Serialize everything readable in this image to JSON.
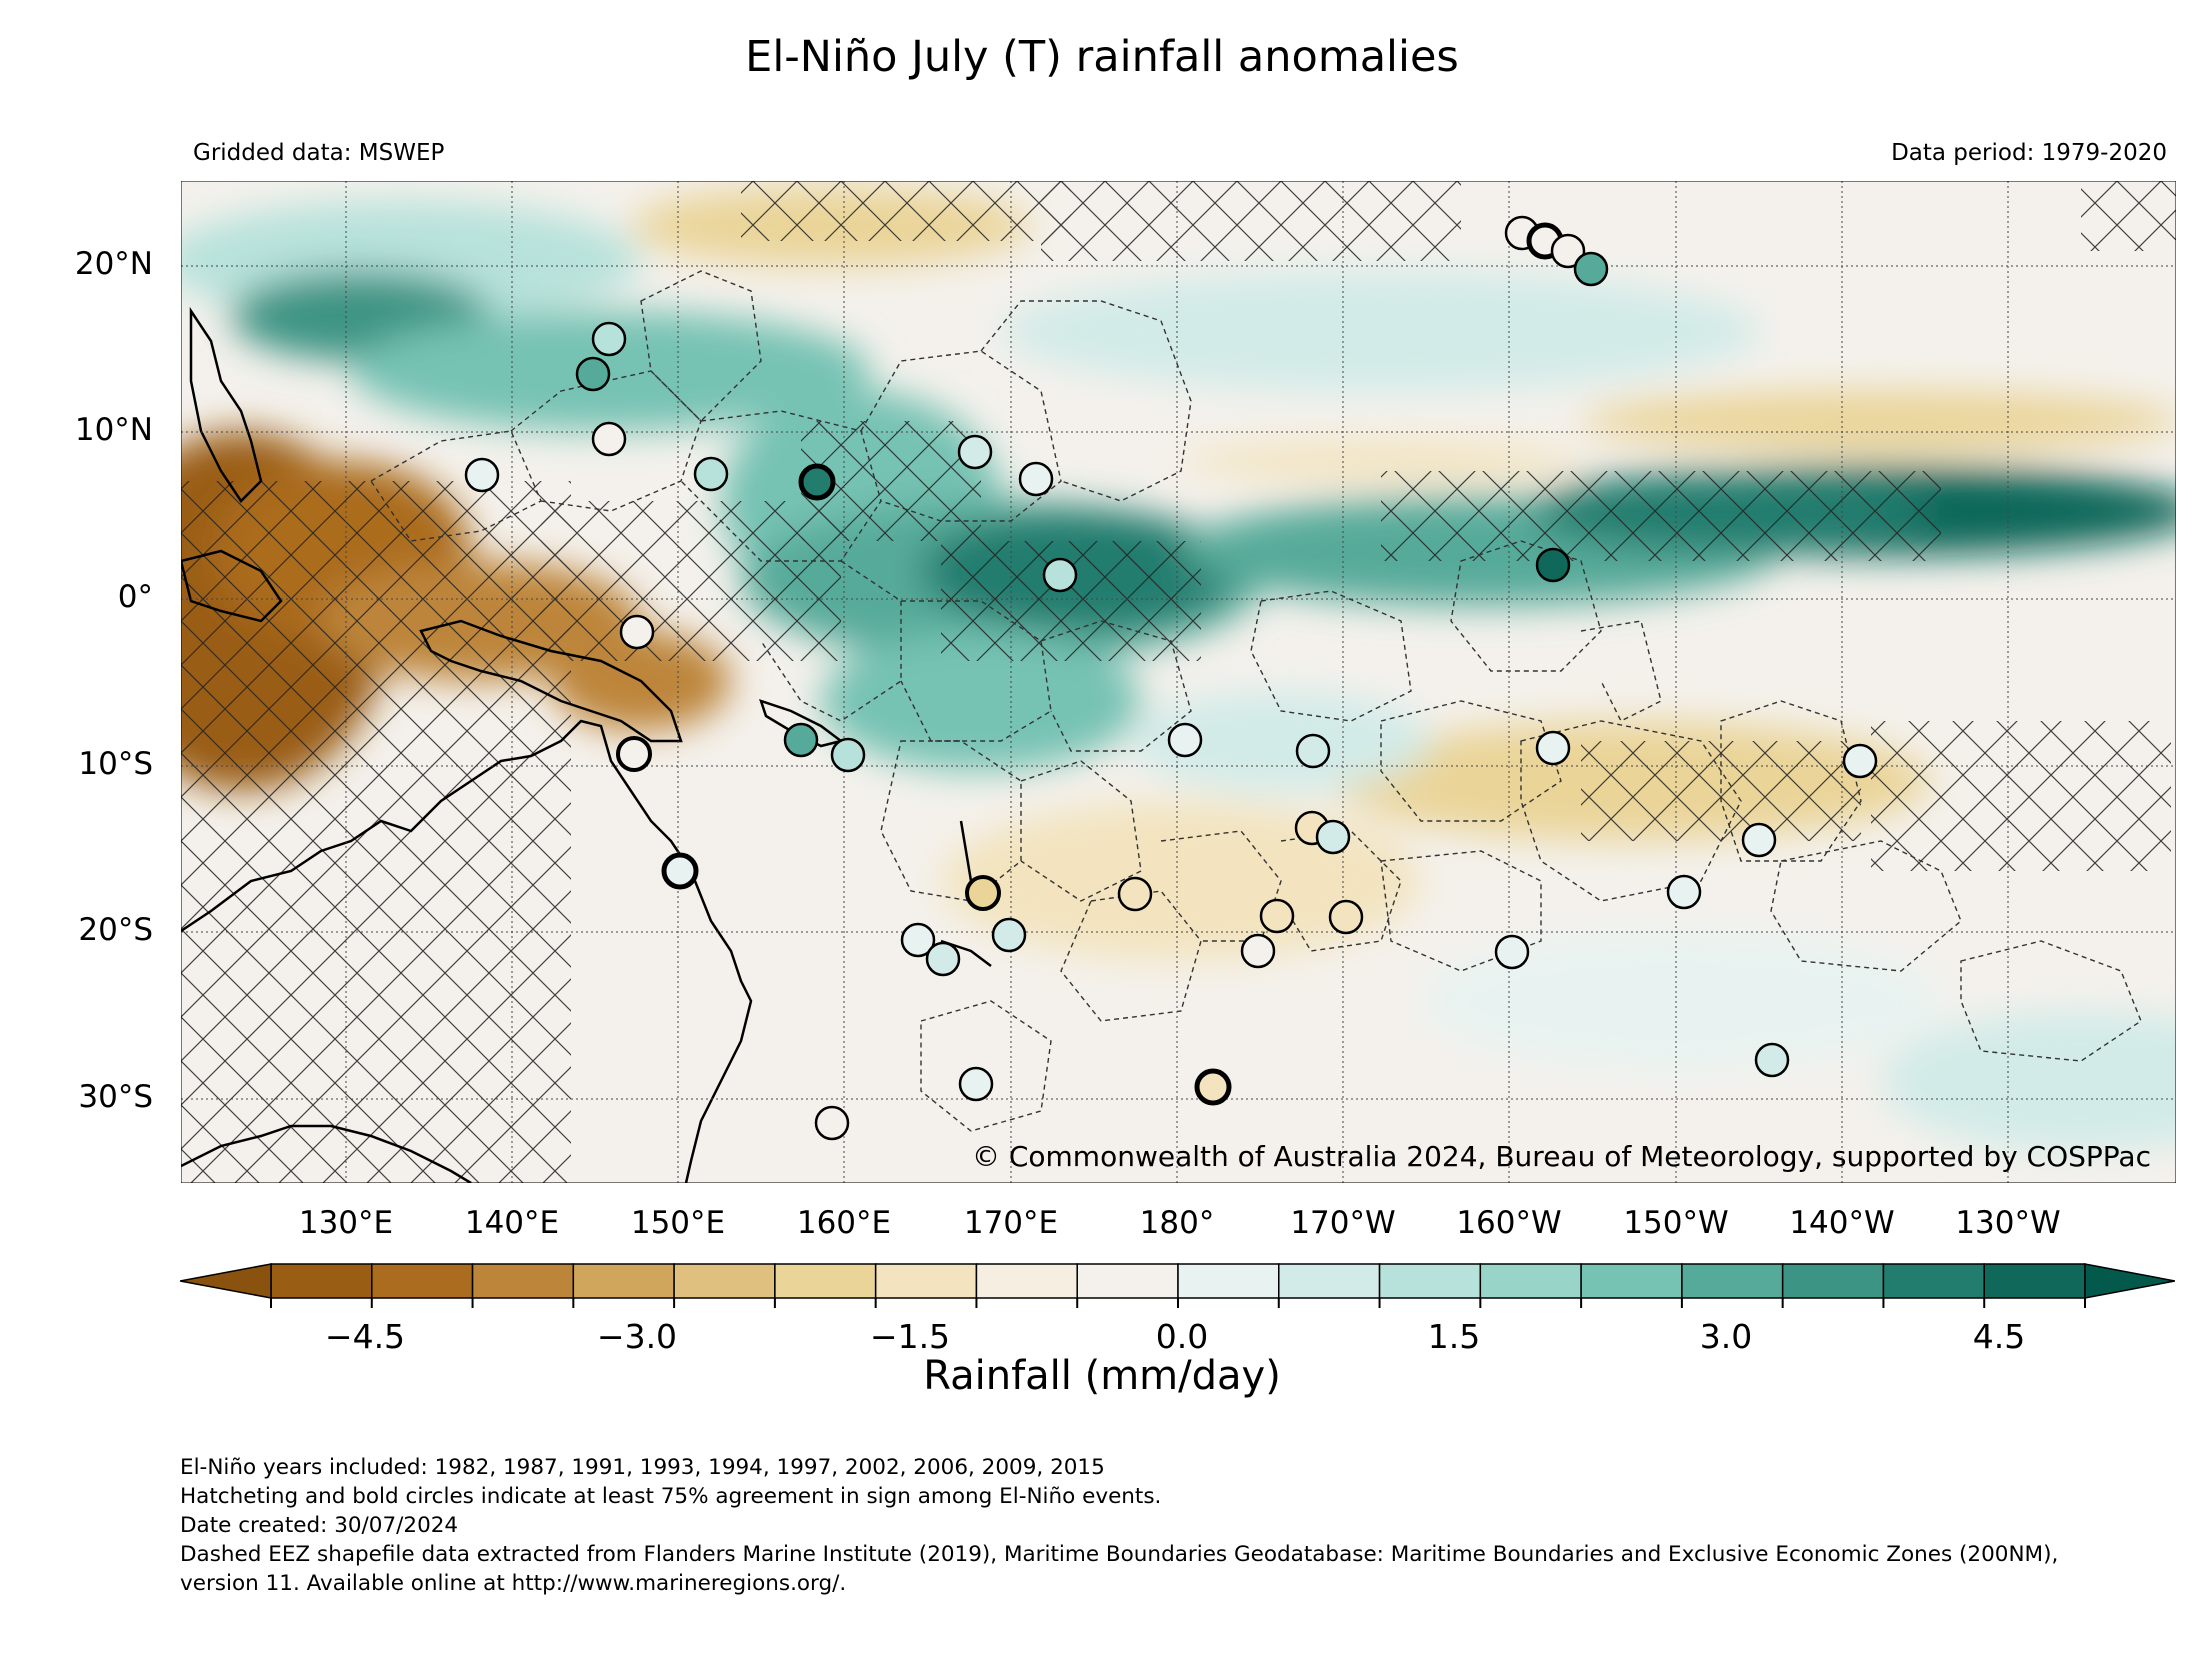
{
  "title": "El-Niño July (T) rainfall anomalies",
  "header_left": "Gridded data: MSWEP",
  "header_right": "Data period: 1979-2020",
  "copyright": "© Commonwealth of Australia 2024, Bureau of Meteorology, supported by COSPPac",
  "lat_labels": [
    "20°N",
    "10°N",
    "0°",
    "10°S",
    "20°S",
    "30°S"
  ],
  "lon_labels": [
    "130°E",
    "140°E",
    "150°E",
    "160°E",
    "170°E",
    "180°",
    "170°W",
    "160°W",
    "150°W",
    "140°W",
    "130°W"
  ],
  "colorbar": {
    "label": "Rainfall (mm/day)",
    "ticks": [
      "−4.5",
      "−3.0",
      "−1.5",
      "0.0",
      "1.5",
      "3.0",
      "4.5"
    ],
    "colors": [
      "#8a520f",
      "#9a5d14",
      "#ab6c1f",
      "#bd853a",
      "#d0a65c",
      "#dfc07e",
      "#ead498",
      "#f3e4bf",
      "#f6eee0",
      "#f4f1ec",
      "#e8f3f1",
      "#d2ebe8",
      "#b7e2db",
      "#98d4c8",
      "#76c2b3",
      "#56aa9a",
      "#3c9484",
      "#237d6e",
      "#10685a",
      "#03594b"
    ]
  },
  "notes": [
    "El-Niño years included: 1982, 1987, 1991, 1993, 1994, 1997, 2002, 2006, 2009, 2015",
    "Hatcheting and bold circles indicate at least 75% agreement in sign among El-Niño events.",
    "Date created: 30/07/2024",
    "Dashed EEZ shapefile data extracted from Flanders Marine Institute (2019), Maritime Boundaries Geodatabase: Maritime Boundaries and Exclusive Economic Zones (200NM),",
    "version 11. Available online at http://www.marineregions.org/."
  ]
}
